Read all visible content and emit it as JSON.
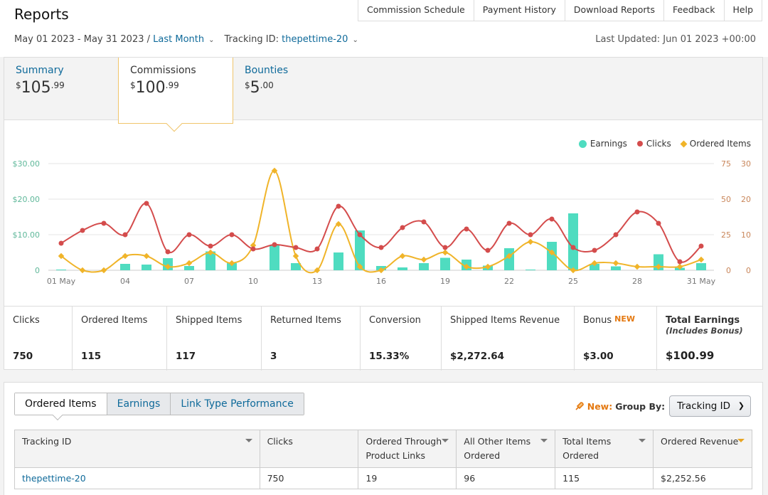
{
  "header": {
    "title": "Reports",
    "nav": [
      "Commission Schedule",
      "Payment History",
      "Download Reports",
      "Feedback",
      "Help"
    ],
    "date_range": "May 01 2023 - May 31 2023 /",
    "period": "Last Month",
    "tracking_label": "Tracking ID:",
    "tracking_id": "thepettime-20",
    "last_updated": "Last Updated: Jun 01 2023 +00:00"
  },
  "tabs": [
    {
      "label": "Summary",
      "currency": "$",
      "whole": "105",
      "cents": "99"
    },
    {
      "label": "Commissions",
      "currency": "$",
      "whole": "100",
      "cents": "99"
    },
    {
      "label": "Bounties",
      "currency": "$",
      "whole": "5",
      "cents": "00"
    }
  ],
  "chart_data": {
    "type": "bar",
    "categories": [
      "01 May",
      "02",
      "03",
      "04",
      "05",
      "06",
      "07",
      "08",
      "09",
      "10",
      "11",
      "12",
      "13",
      "14",
      "15",
      "16",
      "17",
      "18",
      "19",
      "20",
      "21",
      "22",
      "23",
      "24",
      "25",
      "26",
      "27",
      "28",
      "29",
      "30",
      "31 May"
    ],
    "x_tick_labels": [
      "01 May",
      "04",
      "07",
      "10",
      "13",
      "16",
      "19",
      "22",
      "25",
      "28",
      "31 May"
    ],
    "legend_position": "top-right",
    "grid": true,
    "y_left": {
      "ticks": [
        "0",
        "$10.00",
        "$20.00",
        "$30.00"
      ],
      "ylim": [
        0,
        30
      ]
    },
    "y_right_clicks": {
      "ticks": [
        "0",
        "25",
        "50",
        "75"
      ],
      "ylim": [
        0,
        75
      ]
    },
    "y_right_items": {
      "ticks": [
        "0",
        "10",
        "20",
        "30"
      ],
      "ylim": [
        0,
        30
      ]
    },
    "series": [
      {
        "name": "Earnings",
        "type": "bar",
        "axis": "left",
        "values": [
          0.2,
          0,
          0,
          1.8,
          1.6,
          3.4,
          1.2,
          5.3,
          2.0,
          0,
          7.0,
          2.0,
          0,
          5.0,
          11.2,
          1.2,
          0.8,
          2.0,
          3.5,
          3.0,
          1.3,
          6.2,
          0.2,
          8.0,
          16.0,
          1.8,
          1.1,
          0,
          4.5,
          0.7,
          2.0
        ]
      },
      {
        "name": "Clicks",
        "type": "line",
        "axis": "right_clicks",
        "values": [
          19,
          28,
          33,
          25,
          47,
          13,
          25,
          17,
          25,
          15,
          18,
          16,
          15,
          45,
          25,
          16,
          30,
          34,
          16,
          29,
          14,
          33,
          25,
          36,
          16,
          14,
          25,
          41,
          33,
          6,
          17
        ]
      },
      {
        "name": "Ordered Items",
        "type": "line",
        "axis": "right_items",
        "values": [
          4,
          0,
          0,
          4,
          4,
          1,
          2,
          5,
          2,
          7,
          28,
          4,
          0,
          13,
          1,
          0,
          4,
          3,
          5,
          1,
          1,
          4,
          8,
          5,
          0,
          2,
          2,
          1,
          1,
          1,
          3
        ]
      }
    ],
    "colors": {
      "Earnings": "#4fdcc0",
      "Clicks": "#d44c4c",
      "Ordered Items": "#f0b429"
    }
  },
  "metrics": [
    {
      "label": "Clicks",
      "value": "750"
    },
    {
      "label": "Ordered Items",
      "value": "115"
    },
    {
      "label": "Shipped Items",
      "value": "117"
    },
    {
      "label": "Returned Items",
      "value": "3"
    },
    {
      "label": "Conversion",
      "value": "15.33%"
    },
    {
      "label": "Shipped Items Revenue",
      "value": "$2,272.64"
    },
    {
      "label": "Bonus",
      "tag": "NEW",
      "value": "$3.00"
    },
    {
      "label": "Total Earnings",
      "sublabel": "(Includes Bonus)",
      "value": "$100.99"
    }
  ],
  "subtabs": [
    "Ordered Items",
    "Earnings",
    "Link Type Performance"
  ],
  "groupby": {
    "new_label": "New:",
    "label": "Group By:",
    "selected": "Tracking ID"
  },
  "table": {
    "headers": [
      "Tracking ID",
      "Clicks",
      "Ordered Through Product Links",
      "All Other Items Ordered",
      "Total Items Ordered",
      "Ordered Revenue"
    ],
    "rows": [
      [
        "thepettime-20",
        "750",
        "19",
        "96",
        "115",
        "$2,252.56"
      ]
    ]
  }
}
